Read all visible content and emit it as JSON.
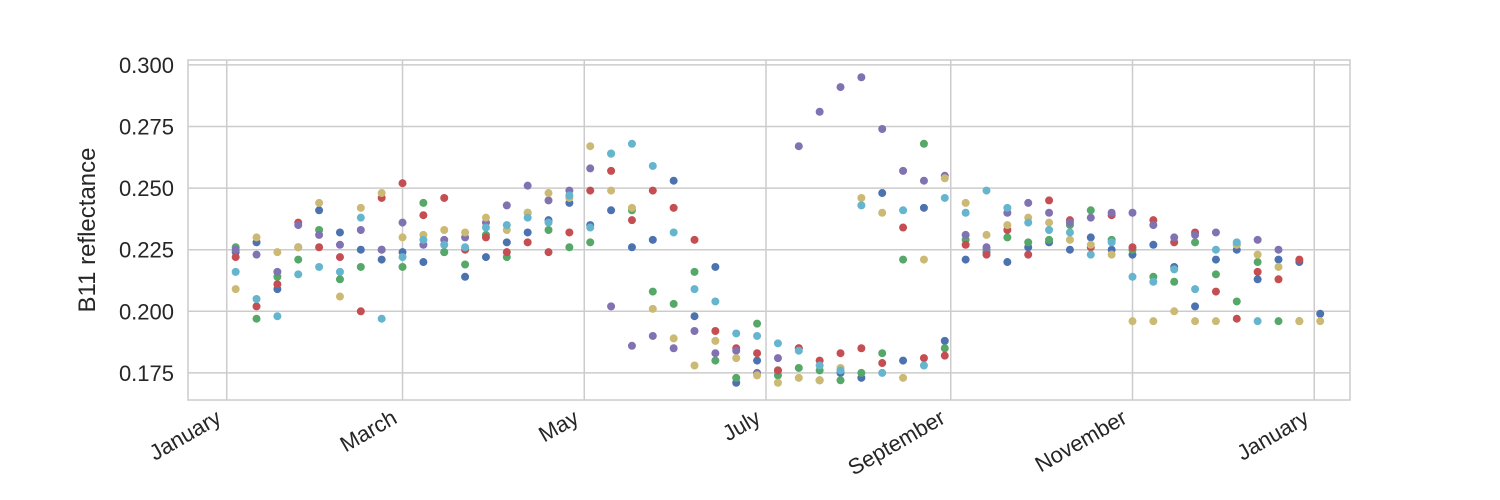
{
  "chart_data": {
    "type": "scatter",
    "title": "",
    "xlabel": "",
    "ylabel": "B11 reflectance",
    "x_tick_labels": [
      "January",
      "March",
      "May",
      "July",
      "September",
      "November",
      "January"
    ],
    "x_tick_dates": [
      "2017-01-01",
      "2017-03-01",
      "2017-05-01",
      "2017-07-01",
      "2017-09-01",
      "2017-11-01",
      "2018-01-01"
    ],
    "xlim": [
      "2016-12-19",
      "2018-01-13"
    ],
    "y_ticks": [
      0.175,
      0.2,
      0.225,
      0.25,
      0.275,
      0.3
    ],
    "y_tick_labels": [
      "0.175",
      "0.200",
      "0.225",
      "0.250",
      "0.275",
      "0.300"
    ],
    "ylim": [
      0.164,
      0.302
    ],
    "grid": true,
    "legend": "none",
    "colors": [
      "#4c72b0",
      "#55a868",
      "#c44e52",
      "#8172b2",
      "#ccb974",
      "#64b5cd"
    ],
    "series": [
      {
        "color": "#4c72b0",
        "x": [
          "2017-01-04",
          "2017-01-11",
          "2017-01-18",
          "2017-01-25",
          "2017-02-01",
          "2017-02-08",
          "2017-02-15",
          "2017-02-22",
          "2017-03-01",
          "2017-03-08",
          "2017-03-15",
          "2017-03-22",
          "2017-03-29",
          "2017-04-05",
          "2017-04-12",
          "2017-04-19",
          "2017-04-26",
          "2017-05-03",
          "2017-05-10",
          "2017-05-17",
          "2017-05-24",
          "2017-05-31",
          "2017-06-07",
          "2017-06-14",
          "2017-06-21",
          "2017-06-28",
          "2017-07-05",
          "2017-07-12",
          "2017-07-19",
          "2017-07-26",
          "2017-08-02",
          "2017-08-09",
          "2017-08-16",
          "2017-08-23",
          "2017-08-30",
          "2017-09-06",
          "2017-09-13",
          "2017-09-20",
          "2017-09-27",
          "2017-10-04",
          "2017-10-11",
          "2017-10-18",
          "2017-10-25",
          "2017-11-01",
          "2017-11-08",
          "2017-11-15",
          "2017-11-22",
          "2017-11-29",
          "2017-12-06",
          "2017-12-13",
          "2017-12-20",
          "2017-12-27",
          "2018-01-03"
        ],
        "y": [
          0.224,
          0.228,
          0.209,
          0.226,
          0.241,
          0.232,
          0.225,
          0.221,
          0.224,
          0.22,
          0.224,
          0.214,
          0.222,
          0.228,
          0.232,
          0.237,
          0.244,
          0.235,
          0.241,
          0.226,
          0.229,
          0.253,
          0.198,
          0.218,
          0.171,
          0.18,
          0.176,
          0.185,
          0.172,
          0.175,
          0.173,
          0.248,
          0.18,
          0.242,
          0.188,
          0.221,
          0.224,
          0.22,
          0.226,
          0.228,
          0.225,
          0.23,
          0.225,
          0.223,
          0.227,
          0.218,
          0.202,
          0.221,
          0.225,
          0.213,
          0.221,
          0.22,
          0.199
        ]
      },
      {
        "color": "#55a868",
        "x": [
          "2017-01-04",
          "2017-01-11",
          "2017-01-18",
          "2017-01-25",
          "2017-02-01",
          "2017-02-08",
          "2017-02-15",
          "2017-02-22",
          "2017-03-01",
          "2017-03-08",
          "2017-03-15",
          "2017-03-22",
          "2017-03-29",
          "2017-04-05",
          "2017-04-12",
          "2017-04-19",
          "2017-04-26",
          "2017-05-03",
          "2017-05-10",
          "2017-05-17",
          "2017-05-24",
          "2017-05-31",
          "2017-06-07",
          "2017-06-14",
          "2017-06-21",
          "2017-06-28",
          "2017-07-05",
          "2017-07-12",
          "2017-07-19",
          "2017-07-26",
          "2017-08-02",
          "2017-08-09",
          "2017-08-16",
          "2017-08-23",
          "2017-08-30",
          "2017-09-06",
          "2017-09-13",
          "2017-09-20",
          "2017-09-27",
          "2017-10-04",
          "2017-10-11",
          "2017-10-18",
          "2017-10-25",
          "2017-11-01",
          "2017-11-08",
          "2017-11-15",
          "2017-11-22",
          "2017-11-29",
          "2017-12-06",
          "2017-12-13",
          "2017-12-20",
          "2017-12-27"
        ],
        "y": [
          0.226,
          0.197,
          0.214,
          0.221,
          0.233,
          0.213,
          0.218,
          0.225,
          0.218,
          0.244,
          0.224,
          0.219,
          0.231,
          0.222,
          0.24,
          0.233,
          0.226,
          0.228,
          0.264,
          0.241,
          0.208,
          0.203,
          0.216,
          0.18,
          0.173,
          0.195,
          0.174,
          0.177,
          0.176,
          0.172,
          0.175,
          0.183,
          0.221,
          0.268,
          0.185,
          0.229,
          0.225,
          0.23,
          0.228,
          0.229,
          0.235,
          0.241,
          0.229,
          0.225,
          0.214,
          0.212,
          0.228,
          0.215,
          0.204,
          0.22,
          0.196,
          0.196
        ]
      },
      {
        "color": "#c44e52",
        "x": [
          "2017-01-04",
          "2017-01-11",
          "2017-01-18",
          "2017-01-25",
          "2017-02-01",
          "2017-02-08",
          "2017-02-15",
          "2017-02-22",
          "2017-03-01",
          "2017-03-08",
          "2017-03-15",
          "2017-03-22",
          "2017-03-29",
          "2017-04-05",
          "2017-04-12",
          "2017-04-19",
          "2017-04-26",
          "2017-05-03",
          "2017-05-10",
          "2017-05-17",
          "2017-05-24",
          "2017-05-31",
          "2017-06-07",
          "2017-06-14",
          "2017-06-21",
          "2017-06-28",
          "2017-07-05",
          "2017-07-12",
          "2017-07-19",
          "2017-07-26",
          "2017-08-02",
          "2017-08-09",
          "2017-08-16",
          "2017-08-23",
          "2017-08-30",
          "2017-09-06",
          "2017-09-13",
          "2017-09-20",
          "2017-09-27",
          "2017-10-04",
          "2017-10-11",
          "2017-10-18",
          "2017-10-25",
          "2017-11-01",
          "2017-11-08",
          "2017-11-15",
          "2017-11-22",
          "2017-11-29",
          "2017-12-06",
          "2017-12-13",
          "2017-12-20",
          "2017-12-27"
        ],
        "y": [
          0.222,
          0.202,
          0.211,
          0.236,
          0.226,
          0.222,
          0.2,
          0.246,
          0.252,
          0.239,
          0.246,
          0.225,
          0.23,
          0.224,
          0.228,
          0.224,
          0.232,
          0.249,
          0.257,
          0.237,
          0.249,
          0.242,
          0.229,
          0.192,
          0.185,
          0.183,
          0.176,
          0.185,
          0.18,
          0.183,
          0.185,
          0.179,
          0.234,
          0.181,
          0.182,
          0.227,
          0.223,
          0.233,
          0.223,
          0.245,
          0.237,
          0.226,
          0.239,
          0.226,
          0.237,
          0.228,
          0.232,
          0.208,
          0.197,
          0.216,
          0.213,
          0.221
        ]
      },
      {
        "color": "#8172b2",
        "x": [
          "2017-01-04",
          "2017-01-11",
          "2017-01-18",
          "2017-01-25",
          "2017-02-01",
          "2017-02-08",
          "2017-02-15",
          "2017-02-22",
          "2017-03-01",
          "2017-03-08",
          "2017-03-15",
          "2017-03-22",
          "2017-03-29",
          "2017-04-05",
          "2017-04-12",
          "2017-04-19",
          "2017-04-26",
          "2017-05-03",
          "2017-05-10",
          "2017-05-17",
          "2017-05-24",
          "2017-05-31",
          "2017-06-07",
          "2017-06-14",
          "2017-06-21",
          "2017-06-28",
          "2017-07-05",
          "2017-07-12",
          "2017-07-19",
          "2017-07-26",
          "2017-08-02",
          "2017-08-09",
          "2017-08-16",
          "2017-08-23",
          "2017-08-30",
          "2017-09-06",
          "2017-09-13",
          "2017-09-20",
          "2017-09-27",
          "2017-10-04",
          "2017-10-11",
          "2017-10-18",
          "2017-10-25",
          "2017-11-01",
          "2017-11-08",
          "2017-11-15",
          "2017-11-22",
          "2017-11-29",
          "2017-12-06",
          "2017-12-13",
          "2017-12-20"
        ],
        "y": [
          0.225,
          0.223,
          0.216,
          0.235,
          0.231,
          0.227,
          0.233,
          0.225,
          0.236,
          0.227,
          0.229,
          0.23,
          0.236,
          0.243,
          0.251,
          0.245,
          0.249,
          0.258,
          0.202,
          0.186,
          0.19,
          0.185,
          0.192,
          0.183,
          0.184,
          0.175,
          0.181,
          0.267,
          0.281,
          0.291,
          0.295,
          0.274,
          0.257,
          0.253,
          0.255,
          0.231,
          0.226,
          0.24,
          0.244,
          0.24,
          0.236,
          0.238,
          0.24,
          0.24,
          0.235,
          0.23,
          0.231,
          0.232,
          0.227,
          0.229,
          0.225
        ]
      },
      {
        "color": "#ccb974",
        "x": [
          "2017-01-04",
          "2017-01-11",
          "2017-01-18",
          "2017-01-25",
          "2017-02-01",
          "2017-02-08",
          "2017-02-15",
          "2017-02-22",
          "2017-03-01",
          "2017-03-08",
          "2017-03-15",
          "2017-03-22",
          "2017-03-29",
          "2017-04-05",
          "2017-04-12",
          "2017-04-19",
          "2017-04-26",
          "2017-05-03",
          "2017-05-10",
          "2017-05-17",
          "2017-05-24",
          "2017-05-31",
          "2017-06-07",
          "2017-06-14",
          "2017-06-21",
          "2017-06-28",
          "2017-07-05",
          "2017-07-12",
          "2017-07-19",
          "2017-07-26",
          "2017-08-02",
          "2017-08-09",
          "2017-08-16",
          "2017-08-23",
          "2017-08-30",
          "2017-09-06",
          "2017-09-13",
          "2017-09-20",
          "2017-09-27",
          "2017-10-04",
          "2017-10-11",
          "2017-10-18",
          "2017-10-25",
          "2017-11-01",
          "2017-11-08",
          "2017-11-15",
          "2017-11-22",
          "2017-11-29",
          "2017-12-06",
          "2017-12-13",
          "2017-12-20",
          "2017-12-27",
          "2018-01-03"
        ],
        "y": [
          0.209,
          0.23,
          0.224,
          0.226,
          0.244,
          0.206,
          0.242,
          0.248,
          0.23,
          0.231,
          0.233,
          0.232,
          0.238,
          0.233,
          0.24,
          0.248,
          0.246,
          0.267,
          0.249,
          0.242,
          0.201,
          0.189,
          0.178,
          0.188,
          0.181,
          0.174,
          0.171,
          0.173,
          0.172,
          0.177,
          0.246,
          0.24,
          0.173,
          0.221,
          0.254,
          0.244,
          0.231,
          0.235,
          0.238,
          0.236,
          0.229,
          0.227,
          0.223,
          0.196,
          0.196,
          0.2,
          0.196,
          0.196,
          0.227,
          0.223,
          0.218,
          0.196,
          0.196
        ]
      },
      {
        "color": "#64b5cd",
        "x": [
          "2017-01-04",
          "2017-01-11",
          "2017-01-18",
          "2017-01-25",
          "2017-02-01",
          "2017-02-08",
          "2017-02-15",
          "2017-02-22",
          "2017-03-01",
          "2017-03-08",
          "2017-03-15",
          "2017-03-22",
          "2017-03-29",
          "2017-04-05",
          "2017-04-12",
          "2017-04-19",
          "2017-04-26",
          "2017-05-03",
          "2017-05-10",
          "2017-05-17",
          "2017-05-24",
          "2017-05-31",
          "2017-06-07",
          "2017-06-14",
          "2017-06-21",
          "2017-06-28",
          "2017-07-05",
          "2017-07-12",
          "2017-07-19",
          "2017-07-26",
          "2017-08-02",
          "2017-08-09",
          "2017-08-16",
          "2017-08-23",
          "2017-08-30",
          "2017-09-06",
          "2017-09-13",
          "2017-09-20",
          "2017-09-27",
          "2017-10-04",
          "2017-10-11",
          "2017-10-18",
          "2017-10-25",
          "2017-11-01",
          "2017-11-08",
          "2017-11-15",
          "2017-11-22",
          "2017-11-29",
          "2017-12-06",
          "2017-12-13"
        ],
        "y": [
          0.216,
          0.205,
          0.198,
          0.215,
          0.218,
          0.216,
          0.238,
          0.197,
          0.222,
          0.229,
          0.227,
          0.226,
          0.234,
          0.235,
          0.238,
          0.236,
          0.247,
          0.234,
          0.264,
          0.268,
          0.259,
          0.232,
          0.209,
          0.204,
          0.191,
          0.19,
          0.187,
          0.184,
          0.178,
          0.176,
          0.243,
          0.175,
          0.241,
          0.178,
          0.246,
          0.24,
          0.249,
          0.242,
          0.236,
          0.233,
          0.232,
          0.223,
          0.228,
          0.214,
          0.212,
          0.217,
          0.209,
          0.225,
          0.228,
          0.196
        ]
      }
    ]
  }
}
